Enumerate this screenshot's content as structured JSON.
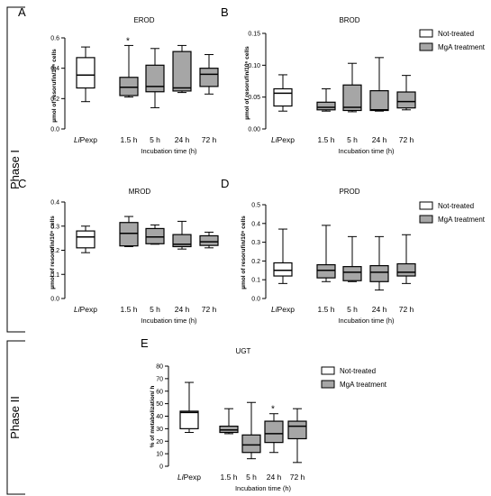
{
  "phase_labels": [
    "Phase I",
    "Phase II"
  ],
  "legend": {
    "not_treated": "Not-treated",
    "mga": "MgA treatment"
  },
  "colors": {
    "not_treated": "#ffffff",
    "mga": "#a6a6a6",
    "stroke": "#000000"
  },
  "chart_data": [
    {
      "type": "box",
      "letter": "A",
      "title": "EROD",
      "ylabel": "µmol of resorufin/10⁶ cells",
      "xlabel": "Incubation time (h)",
      "categories": [
        "LiPexp",
        "1.5 h",
        "5 h",
        "24 h",
        "72 h"
      ],
      "ylim": [
        0,
        0.6
      ],
      "yticks": [
        0,
        0.2,
        0.4,
        0.6
      ],
      "yticklabels": [
        "0.0",
        "0.2",
        "0.4",
        "0.6"
      ],
      "annotations": [
        {
          "category": "1.5 h",
          "text": "*"
        }
      ],
      "legend": false,
      "boxes": [
        {
          "category": "LiPexp",
          "group": "not_treated",
          "min": 0.18,
          "q1": 0.27,
          "median": 0.355,
          "q3": 0.47,
          "max": 0.54
        },
        {
          "category": "1.5 h",
          "group": "mga",
          "min": 0.21,
          "q1": 0.22,
          "median": 0.275,
          "q3": 0.34,
          "max": 0.55
        },
        {
          "category": "5 h",
          "group": "mga",
          "min": 0.14,
          "q1": 0.245,
          "median": 0.28,
          "q3": 0.42,
          "max": 0.53
        },
        {
          "category": "24 h",
          "group": "mga",
          "min": 0.24,
          "q1": 0.25,
          "median": 0.27,
          "q3": 0.51,
          "max": 0.55
        },
        {
          "category": "72 h",
          "group": "mga",
          "min": 0.23,
          "q1": 0.28,
          "median": 0.36,
          "q3": 0.4,
          "max": 0.49
        }
      ]
    },
    {
      "type": "box",
      "letter": "B",
      "title": "BROD",
      "ylabel": "µmol of resorufin/10⁶ cells",
      "xlabel": "Incubation time (h)",
      "categories": [
        "LiPexp",
        "1.5 h",
        "5 h",
        "24 h",
        "72 h"
      ],
      "ylim": [
        0,
        0.15
      ],
      "yticks": [
        0,
        0.05,
        0.1,
        0.15
      ],
      "yticklabels": [
        "0.00",
        "0.05",
        "0.10",
        "0.15"
      ],
      "annotations": [],
      "legend": true,
      "boxes": [
        {
          "category": "LiPexp",
          "group": "not_treated",
          "min": 0.028,
          "q1": 0.036,
          "median": 0.056,
          "q3": 0.063,
          "max": 0.085
        },
        {
          "category": "1.5 h",
          "group": "mga",
          "min": 0.028,
          "q1": 0.03,
          "median": 0.034,
          "q3": 0.042,
          "max": 0.063
        },
        {
          "category": "5 h",
          "group": "mga",
          "min": 0.027,
          "q1": 0.029,
          "median": 0.034,
          "q3": 0.069,
          "max": 0.103
        },
        {
          "category": "24 h",
          "group": "mga",
          "min": 0.028,
          "q1": 0.029,
          "median": 0.03,
          "q3": 0.06,
          "max": 0.112
        },
        {
          "category": "72 h",
          "group": "mga",
          "min": 0.03,
          "q1": 0.033,
          "median": 0.043,
          "q3": 0.058,
          "max": 0.084
        }
      ]
    },
    {
      "type": "box",
      "letter": "C",
      "title": "MROD",
      "ylabel": "µmol of resorufin/10⁶ cells",
      "xlabel": "Incubation time (h)",
      "categories": [
        "LiPexp",
        "1.5 h",
        "5 h",
        "24 h",
        "72 h"
      ],
      "ylim": [
        0,
        0.4
      ],
      "yticks": [
        0,
        0.1,
        0.2,
        0.3,
        0.4
      ],
      "yticklabels": [
        "0.0",
        "0.1",
        "0.2",
        "0.3",
        "0.4"
      ],
      "annotations": [],
      "legend": false,
      "boxes": [
        {
          "category": "LiPexp",
          "group": "not_treated",
          "min": 0.19,
          "q1": 0.21,
          "median": 0.255,
          "q3": 0.28,
          "max": 0.3
        },
        {
          "category": "1.5 h",
          "group": "mga",
          "min": 0.215,
          "q1": 0.218,
          "median": 0.27,
          "q3": 0.315,
          "max": 0.34
        },
        {
          "category": "5 h",
          "group": "mga",
          "min": 0.225,
          "q1": 0.227,
          "median": 0.255,
          "q3": 0.29,
          "max": 0.305
        },
        {
          "category": "24 h",
          "group": "mga",
          "min": 0.205,
          "q1": 0.215,
          "median": 0.225,
          "q3": 0.265,
          "max": 0.32
        },
        {
          "category": "72 h",
          "group": "mga",
          "min": 0.21,
          "q1": 0.22,
          "median": 0.235,
          "q3": 0.26,
          "max": 0.275
        }
      ]
    },
    {
      "type": "box",
      "letter": "D",
      "title": "PROD",
      "ylabel": "µmol of resorufin/10⁶ cells",
      "xlabel": "Incubation time (h)",
      "categories": [
        "LiPexp",
        "1.5 h",
        "5 h",
        "24 h",
        "72 h"
      ],
      "ylim": [
        0,
        0.5
      ],
      "yticks": [
        0,
        0.1,
        0.2,
        0.3,
        0.4,
        0.5
      ],
      "yticklabels": [
        "0.0",
        "0.1",
        "0.2",
        "0.3",
        "0.4",
        "0.5"
      ],
      "annotations": [],
      "legend": true,
      "boxes": [
        {
          "category": "LiPexp",
          "group": "not_treated",
          "min": 0.08,
          "q1": 0.12,
          "median": 0.15,
          "q3": 0.19,
          "max": 0.37
        },
        {
          "category": "1.5 h",
          "group": "mga",
          "min": 0.09,
          "q1": 0.11,
          "median": 0.15,
          "q3": 0.18,
          "max": 0.39
        },
        {
          "category": "5 h",
          "group": "mga",
          "min": 0.09,
          "q1": 0.095,
          "median": 0.14,
          "q3": 0.17,
          "max": 0.33
        },
        {
          "category": "24 h",
          "group": "mga",
          "min": 0.045,
          "q1": 0.09,
          "median": 0.14,
          "q3": 0.175,
          "max": 0.33
        },
        {
          "category": "72 h",
          "group": "mga",
          "min": 0.08,
          "q1": 0.12,
          "median": 0.14,
          "q3": 0.185,
          "max": 0.34
        }
      ]
    },
    {
      "type": "box",
      "letter": "E",
      "title": "UGT",
      "ylabel": "% of metabolization/ h",
      "xlabel": "Incubation time (h)",
      "categories": [
        "LiPexp",
        "1.5 h",
        "5 h",
        "24 h",
        "72 h"
      ],
      "ylim": [
        0,
        80
      ],
      "yticks": [
        0,
        10,
        20,
        30,
        40,
        50,
        60,
        70,
        80
      ],
      "yticklabels": [
        "0",
        "10",
        "20",
        "30",
        "40",
        "50",
        "60",
        "70",
        "80"
      ],
      "annotations": [
        {
          "category": "24 h",
          "text": "*"
        }
      ],
      "legend": true,
      "boxes": [
        {
          "category": "LiPexp",
          "group": "not_treated",
          "min": 27,
          "q1": 30,
          "median": 43,
          "q3": 44,
          "max": 67
        },
        {
          "category": "1.5 h",
          "group": "mga",
          "min": 26,
          "q1": 27,
          "median": 29,
          "q3": 32,
          "max": 46
        },
        {
          "category": "5 h",
          "group": "mga",
          "min": 6,
          "q1": 11,
          "median": 17,
          "q3": 25,
          "max": 51
        },
        {
          "category": "24 h",
          "group": "mga",
          "min": 11,
          "q1": 19,
          "median": 26,
          "q3": 36,
          "max": 42
        },
        {
          "category": "72 h",
          "group": "mga",
          "min": 3,
          "q1": 22,
          "median": 32,
          "q3": 36,
          "max": 46
        }
      ]
    }
  ]
}
